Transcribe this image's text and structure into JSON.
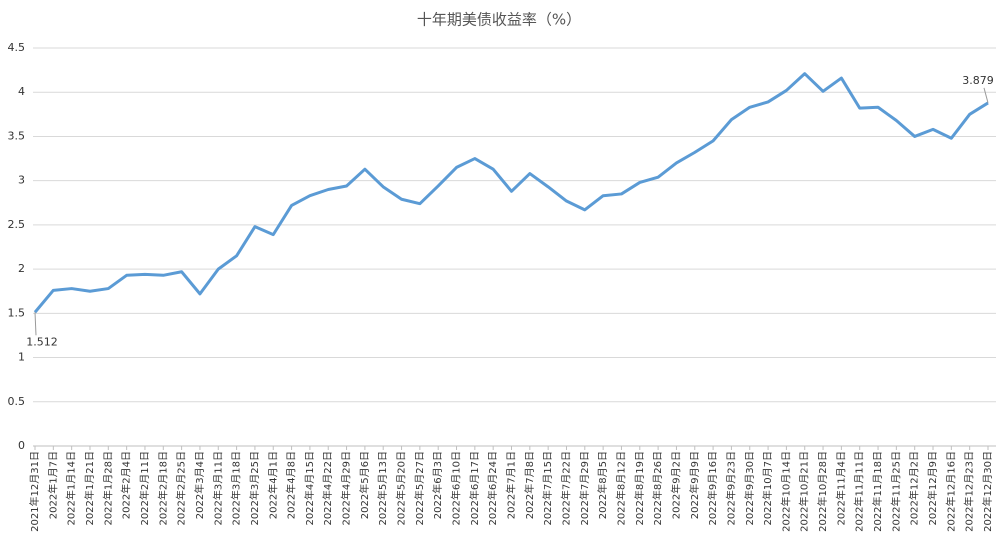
{
  "chart_data": {
    "type": "line",
    "title": "十年期美债收益率（%）",
    "categories": [
      "2021年12月31日",
      "2022年1月7日",
      "2022年1月14日",
      "2022年1月21日",
      "2022年1月28日",
      "2022年2月4日",
      "2022年2月11日",
      "2022年2月18日",
      "2022年2月25日",
      "2022年3月4日",
      "2022年3月11日",
      "2022年3月18日",
      "2022年3月25日",
      "2022年4月1日",
      "2022年4月8日",
      "2022年4月15日",
      "2022年4月22日",
      "2022年4月29日",
      "2022年5月6日",
      "2022年5月13日",
      "2022年5月20日",
      "2022年5月27日",
      "2022年6月3日",
      "2022年6月10日",
      "2022年6月17日",
      "2022年6月24日",
      "2022年7月1日",
      "2022年7月8日",
      "2022年7月15日",
      "2022年7月22日",
      "2022年7月29日",
      "2022年8月5日",
      "2022年8月12日",
      "2022年8月19日",
      "2022年8月26日",
      "2022年9月2日",
      "2022年9月9日",
      "2022年9月16日",
      "2022年9月23日",
      "2022年9月30日",
      "2022年10月7日",
      "2022年10月14日",
      "2022年10月21日",
      "2022年10月28日",
      "2022年11月4日",
      "2022年11月11日",
      "2022年11月18日",
      "2022年11月25日",
      "2022年12月2日",
      "2022年12月9日",
      "2022年12月16日",
      "2022年12月23日",
      "2022年12月30日"
    ],
    "series": [
      {
        "name": "十年期美债收益率",
        "color": "#5b9bd5",
        "values": [
          1.512,
          1.76,
          1.78,
          1.75,
          1.78,
          1.93,
          1.94,
          1.93,
          1.97,
          1.72,
          2.0,
          2.15,
          2.48,
          2.39,
          2.72,
          2.83,
          2.9,
          2.94,
          3.13,
          2.93,
          2.79,
          2.74,
          2.94,
          3.15,
          3.25,
          3.13,
          2.88,
          3.08,
          2.93,
          2.77,
          2.67,
          2.83,
          2.85,
          2.98,
          3.04,
          3.2,
          3.32,
          3.45,
          3.69,
          3.83,
          3.89,
          4.02,
          4.21,
          4.01,
          4.16,
          3.82,
          3.83,
          3.68,
          3.5,
          3.58,
          3.48,
          3.75,
          3.879
        ],
        "value_labels": [
          "1.512",
          null,
          null,
          null,
          null,
          null,
          null,
          null,
          null,
          null,
          null,
          null,
          null,
          null,
          null,
          null,
          null,
          null,
          null,
          null,
          null,
          null,
          null,
          null,
          null,
          null,
          null,
          null,
          null,
          null,
          null,
          null,
          null,
          null,
          null,
          null,
          null,
          null,
          null,
          null,
          null,
          null,
          null,
          null,
          null,
          null,
          null,
          null,
          null,
          null,
          null,
          null,
          "3.879"
        ]
      }
    ],
    "ylim": [
      0,
      4.5
    ],
    "yticks": [
      0,
      0.5,
      1,
      1.5,
      2,
      2.5,
      3,
      3.5,
      4,
      4.5
    ],
    "grid": true
  }
}
